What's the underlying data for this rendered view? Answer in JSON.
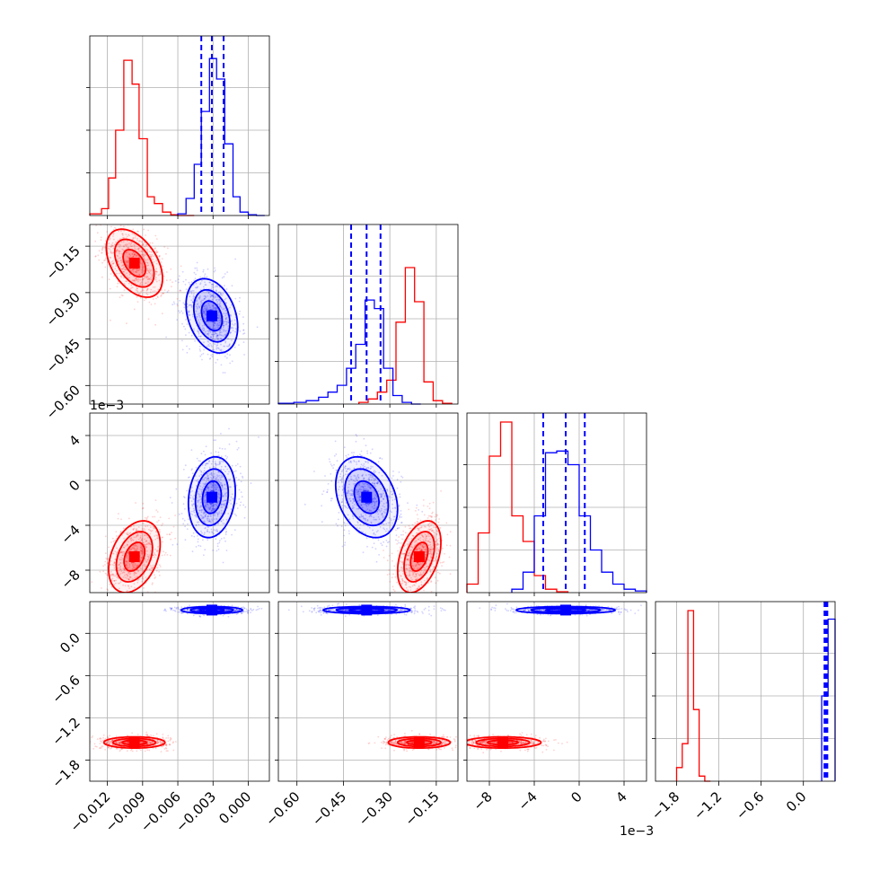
{
  "chart_data": {
    "type": "corner",
    "title": "",
    "series": [
      {
        "id": "red",
        "color": "#ff0000"
      },
      {
        "id": "blue",
        "color": "#0000ff"
      }
    ],
    "params": [
      {
        "id": "p1",
        "range": [
          -0.0135,
          0.0018
        ],
        "ticks": [
          -0.012,
          -0.009,
          -0.006,
          -0.003,
          0.0
        ],
        "tick_labels": [
          "−0.012",
          "−0.009",
          "−0.006",
          "−0.003",
          "0.000"
        ],
        "offset_label": ""
      },
      {
        "id": "p2",
        "range": [
          -0.66,
          -0.08
        ],
        "ticks": [
          -0.6,
          -0.45,
          -0.3,
          -0.15
        ],
        "tick_labels": [
          "−0.60",
          "−0.45",
          "−0.30",
          "−0.15"
        ],
        "offset_label": ""
      },
      {
        "id": "p3",
        "range": [
          -10.0,
          6.0
        ],
        "ticks": [
          -8,
          -4,
          0,
          4
        ],
        "tick_labels": [
          "−8",
          "−4",
          "0",
          "4"
        ],
        "offset_label": "1e−3"
      },
      {
        "id": "p4",
        "range": [
          -2.1,
          0.45
        ],
        "ticks": [
          -1.8,
          -1.2,
          -0.6,
          0.0
        ],
        "tick_labels": [
          "−1.8",
          "−1.2",
          "−0.6",
          "0.0"
        ],
        "offset_label": ""
      }
    ],
    "diagonal": [
      {
        "param": "p1",
        "quantile_lines": [
          -0.004,
          -0.0031,
          -0.0021
        ],
        "hist": {
          "red": {
            "edges": [
              -0.0135,
              -0.0125,
              -0.0119,
              -0.0113,
              -0.0106,
              -0.0099,
              -0.0093,
              -0.0086,
              -0.008,
              -0.0073,
              -0.0066,
              -0.006,
              -0.0053,
              -0.0046
            ],
            "counts": [
              0.01,
              0.04,
              0.22,
              0.5,
              0.91,
              0.77,
              0.45,
              0.11,
              0.07,
              0.02,
              0.005,
              0.0,
              0.0
            ]
          },
          "blue": {
            "edges": [
              -0.006,
              -0.0053,
              -0.0046,
              -0.004,
              -0.0033,
              -0.0027,
              -0.002,
              -0.0013,
              -0.0007,
              0.0,
              0.0007,
              0.0014
            ],
            "counts": [
              0.01,
              0.1,
              0.3,
              0.61,
              0.92,
              0.8,
              0.42,
              0.11,
              0.02,
              0.005,
              0.0
            ]
          }
        }
      },
      {
        "param": "p2",
        "quantile_lines": [
          -0.425,
          -0.375,
          -0.33
        ],
        "hist": {
          "red": {
            "edges": [
              -0.4,
              -0.37,
              -0.34,
              -0.31,
              -0.28,
              -0.25,
              -0.22,
              -0.19,
              -0.16,
              -0.13,
              -0.1
            ],
            "counts": [
              0.01,
              0.03,
              0.07,
              0.14,
              0.48,
              0.8,
              0.6,
              0.13,
              0.02,
              0.005
            ]
          },
          "blue": {
            "edges": [
              -0.66,
              -0.61,
              -0.57,
              -0.53,
              -0.5,
              -0.47,
              -0.44,
              -0.41,
              -0.38,
              -0.35,
              -0.32,
              -0.29,
              -0.26,
              -0.23,
              -0.2
            ],
            "counts": [
              0.005,
              0.01,
              0.02,
              0.04,
              0.07,
              0.11,
              0.21,
              0.35,
              0.61,
              0.56,
              0.21,
              0.05,
              0.01,
              0.0
            ]
          }
        }
      },
      {
        "param": "p3",
        "quantile_lines": [
          -3.2,
          -1.2,
          0.5
        ],
        "hist": {
          "red": {
            "edges": [
              -10,
              -9,
              -8,
              -7,
              -6,
              -5,
              -4,
              -3,
              -2,
              -1
            ],
            "counts": [
              0.05,
              0.35,
              0.8,
              1.0,
              0.45,
              0.3,
              0.1,
              0.02,
              0.005
            ]
          },
          "blue": {
            "edges": [
              -6,
              -5,
              -4,
              -3,
              -2,
              -1,
              0,
              1,
              2,
              3,
              4,
              5,
              6
            ],
            "counts": [
              0.02,
              0.12,
              0.45,
              0.82,
              0.83,
              0.75,
              0.45,
              0.25,
              0.12,
              0.05,
              0.02,
              0.01
            ]
          }
        }
      },
      {
        "param": "p4",
        "quantile_lines": [
          0.3,
          0.32,
          0.34
        ],
        "hist": {
          "red": {
            "edges": [
              -1.8,
              -1.72,
              -1.64,
              -1.56,
              -1.48,
              -1.4,
              -1.32
            ],
            "counts": [
              0.08,
              0.22,
              1.0,
              0.42,
              0.03,
              0.0
            ]
          },
          "blue": {
            "edges": [
              0.26,
              0.35,
              0.45
            ],
            "counts": [
              0.5,
              0.95
            ]
          }
        }
      }
    ],
    "offdiagonal": [
      {
        "row": "p2",
        "col": "p1",
        "red": {
          "mean": [
            -0.0097,
            -0.205
          ],
          "sd": [
            0.0012,
            0.055
          ],
          "rho": -0.45
        },
        "blue": {
          "mean": [
            -0.0031,
            -0.375
          ],
          "sd": [
            0.0011,
            0.06
          ],
          "rho": -0.3
        }
      },
      {
        "row": "p3",
        "col": "p1",
        "red": {
          "mean": [
            -0.0097,
            -6.8
          ],
          "sd": [
            0.0011,
            1.6
          ],
          "rho": 0.35
        },
        "blue": {
          "mean": [
            -0.0031,
            -1.5
          ],
          "sd": [
            0.001,
            1.8
          ],
          "rho": 0.15
        }
      },
      {
        "row": "p3",
        "col": "p2",
        "red": {
          "mean": [
            -0.205,
            -6.8
          ],
          "sd": [
            0.035,
            1.6
          ],
          "rho": 0.4
        },
        "blue": {
          "mean": [
            -0.375,
            -1.5
          ],
          "sd": [
            0.05,
            1.8
          ],
          "rho": -0.3
        }
      },
      {
        "row": "p4",
        "col": "p1",
        "red": {
          "mean": [
            -0.0097,
            -1.55
          ],
          "sd": [
            0.0013,
            0.04
          ],
          "rho": 0.0
        },
        "blue": {
          "mean": [
            -0.0031,
            0.33
          ],
          "sd": [
            0.0013,
            0.025
          ],
          "rho": 0.0
        }
      },
      {
        "row": "p4",
        "col": "p2",
        "red": {
          "mean": [
            -0.205,
            -1.55
          ],
          "sd": [
            0.05,
            0.04
          ],
          "rho": 0.0
        },
        "blue": {
          "mean": [
            -0.375,
            0.33
          ],
          "sd": [
            0.07,
            0.025
          ],
          "rho": 0.0
        }
      },
      {
        "row": "p4",
        "col": "p3",
        "red": {
          "mean": [
            -6.8,
            -1.55
          ],
          "sd": [
            1.7,
            0.04
          ],
          "rho": 0.0
        },
        "blue": {
          "mean": [
            -1.2,
            0.33
          ],
          "sd": [
            2.2,
            0.025
          ],
          "rho": 0.0
        }
      }
    ]
  }
}
